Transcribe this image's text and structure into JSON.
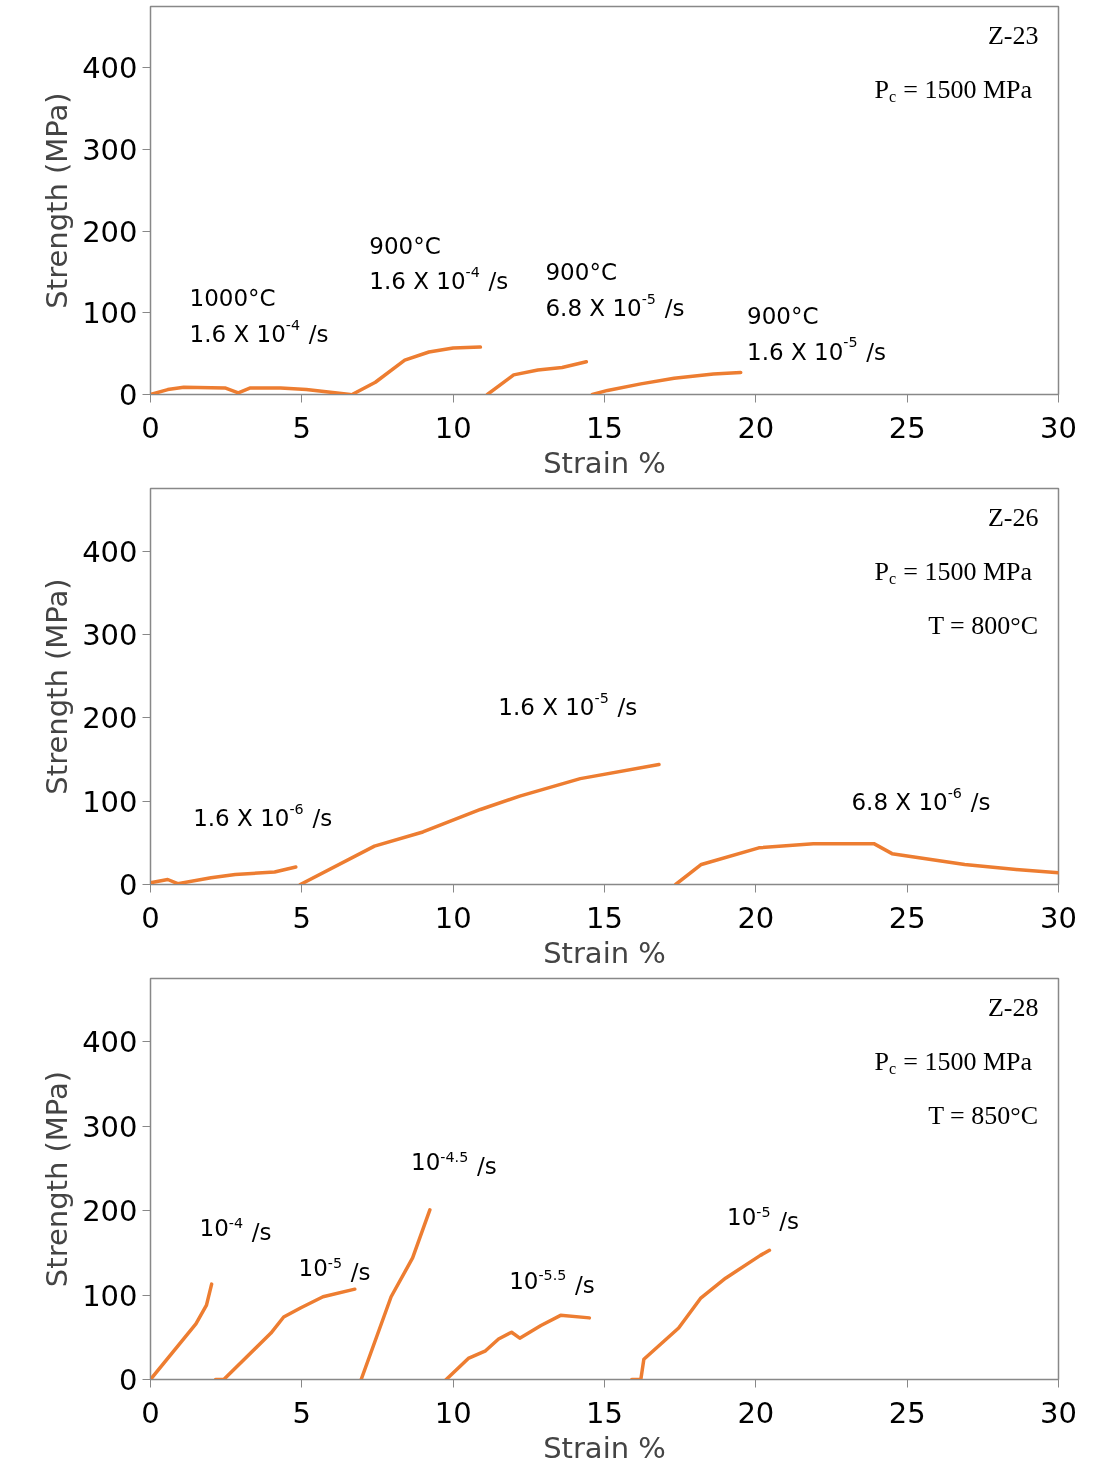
{
  "chart_data": [
    {
      "type": "line",
      "xlabel": "Strain %",
      "ylabel": "Strength (MPa)",
      "xlim": [
        0,
        30
      ],
      "ylim": [
        0,
        475
      ],
      "xticks": [
        0,
        5,
        10,
        15,
        20,
        25,
        30
      ],
      "yticks": [
        0,
        100,
        200,
        300,
        400
      ],
      "grid": false,
      "series": [
        {
          "color": "#ed7d31",
          "x": [
            0,
            0.57,
            1.1,
            2.46,
            2.9,
            3.3,
            4.3,
            5.15,
            6.6
          ],
          "values": [
            0,
            6,
            9,
            8,
            2,
            8,
            8,
            6,
            0
          ]
        },
        {
          "color": "#ed7d31",
          "x": [
            6.66,
            7.43,
            8.4,
            9.2,
            10.0,
            10.9
          ],
          "values": [
            0,
            15,
            42,
            52,
            57,
            58
          ]
        },
        {
          "color": "#ed7d31",
          "x": [
            11.13,
            12.0,
            12.8,
            13.6,
            14.4
          ],
          "values": [
            0,
            24,
            30,
            33,
            40
          ]
        },
        {
          "color": "#ed7d31",
          "x": [
            14.6,
            15.1,
            16.2,
            17.3,
            18.6,
            19.5
          ],
          "values": [
            0,
            5,
            13,
            20,
            25,
            27
          ]
        }
      ],
      "annotations": [
        "Z-23",
        "P$_{c}$ = 1500 MPa",
        "1000°C\n1.6 X 10$^{-4}$ /s",
        "900°C\n1.6 X 10$^{-4}$ /s",
        "900°C\n6.8 X 10$^{-5}$ /s",
        "900°C\n1.6 X 10$^{-5}$ /s"
      ]
    },
    {
      "type": "line",
      "xlabel": "Strain %",
      "ylabel": "Strength (MPa)",
      "xlim": [
        0,
        30
      ],
      "ylim": [
        0,
        475
      ],
      "xticks": [
        0,
        5,
        10,
        15,
        20,
        25,
        30
      ],
      "yticks": [
        0,
        100,
        200,
        300,
        400
      ],
      "grid": false,
      "series": [
        {
          "color": "#ed7d31",
          "x": [
            0,
            0.57,
            0.9,
            2.0,
            2.8,
            4.1,
            4.8
          ],
          "values": [
            2,
            6,
            1,
            8,
            12,
            15,
            21
          ]
        },
        {
          "color": "#ed7d31",
          "x": [
            4.95,
            7.4,
            9.0,
            10.9,
            12.2,
            14.2,
            16.8
          ],
          "values": [
            0,
            46,
            63,
            90,
            106,
            127,
            144
          ]
        },
        {
          "color": "#ed7d31",
          "x": [
            17.35,
            18.2,
            20.1,
            21.9,
            23.9,
            24.5,
            26.9,
            28.6,
            30
          ],
          "values": [
            0,
            24,
            44,
            49,
            49,
            37,
            24,
            18,
            14
          ]
        }
      ],
      "annotations": [
        "Z-26",
        "P$_{c}$ = 1500 MPa",
        "T = 800°C",
        "1.6 X 10$^{-6}$ /s",
        "1.6 X 10$^{-5}$ /s",
        "6.8 X 10$^{-6}$ /s"
      ]
    },
    {
      "type": "line",
      "xlabel": "Strain %",
      "ylabel": "Strength (MPa)",
      "xlim": [
        0,
        30
      ],
      "ylim": [
        0,
        475
      ],
      "xticks": [
        0,
        5,
        10,
        15,
        20,
        25,
        30
      ],
      "yticks": [
        0,
        100,
        200,
        300,
        400
      ],
      "grid": false,
      "series": [
        {
          "color": "#ed7d31",
          "x": [
            0,
            1.5,
            1.85,
            2.02
          ],
          "values": [
            0,
            66,
            88,
            113
          ]
        },
        {
          "color": "#ed7d31",
          "x": [
            2.15,
            2.42,
            3.98,
            4.4,
            4.97,
            5.7,
            6.75
          ],
          "values": [
            0,
            0,
            55,
            74,
            85,
            98,
            107
          ]
        },
        {
          "color": "#ed7d31",
          "x": [
            6.96,
            7.95,
            8.66,
            9.23
          ],
          "values": [
            0,
            98,
            144,
            201
          ]
        },
        {
          "color": "#ed7d31",
          "x": [
            9.77,
            10.5,
            11.07,
            11.5,
            11.93,
            12.2,
            12.9,
            13.55,
            14.5
          ],
          "values": [
            0,
            25,
            34,
            48,
            56,
            49,
            64,
            76,
            73
          ]
        },
        {
          "color": "#ed7d31",
          "x": [
            15.9,
            16.2,
            16.3,
            17.45,
            18.17,
            19.0,
            20.15,
            20.45
          ],
          "values": [
            0,
            0,
            24,
            61,
            96,
            120,
            147,
            153
          ]
        }
      ],
      "annotations": [
        "Z-28",
        "P$_{c}$ = 1500 MPa",
        "T = 850°C",
        "10$^{-4}$ /s",
        "10$^{-5}$ /s",
        "10$^{-4.5}$ /s",
        "10$^{-5.5}$ /s",
        "10$^{-5}$ /s"
      ]
    }
  ]
}
